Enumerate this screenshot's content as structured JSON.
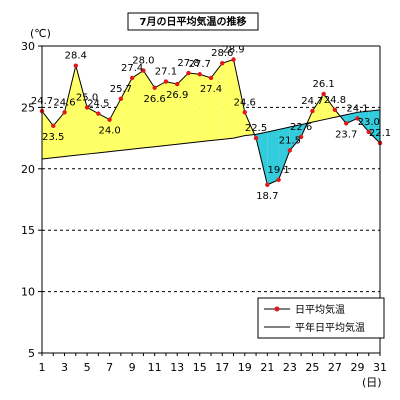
{
  "chart_data": {
    "type": "line",
    "title": "7月の日平均気温の推移",
    "y_unit": "(℃)",
    "x_unit": "(日)",
    "ylim": [
      5,
      30
    ],
    "y_ticks": [
      "5",
      "10",
      "15",
      "20",
      "25",
      "30"
    ],
    "y_tick_values": [
      5,
      10,
      15,
      20,
      25,
      30
    ],
    "dashed_grid_values": [
      10,
      15,
      20,
      25
    ],
    "x_ticks": [
      "1",
      "3",
      "5",
      "7",
      "9",
      "11",
      "13",
      "15",
      "17",
      "19",
      "21",
      "23",
      "25",
      "27",
      "29",
      "31"
    ],
    "x": [
      1,
      2,
      3,
      4,
      5,
      6,
      7,
      8,
      9,
      10,
      11,
      12,
      13,
      14,
      15,
      16,
      17,
      18,
      19,
      20,
      21,
      22,
      23,
      24,
      25,
      26,
      27,
      28,
      29,
      30,
      31
    ],
    "series": [
      {
        "name": "日平均気温",
        "color": "#e01818",
        "values": [
          24.7,
          23.5,
          24.6,
          28.4,
          25.0,
          24.5,
          24.0,
          25.7,
          27.4,
          28.0,
          26.6,
          27.1,
          26.9,
          27.8,
          27.7,
          27.4,
          28.6,
          28.9,
          24.6,
          22.5,
          18.7,
          19.1,
          21.5,
          22.6,
          24.7,
          26.1,
          24.8,
          23.7,
          24.1,
          23.0,
          22.1
        ],
        "labels": [
          "24.7",
          "23.5",
          "24.6",
          "28.4",
          "25.0",
          "24.5",
          "24.0",
          "25.7",
          "27.4",
          "28.0",
          "26.6",
          "27.1",
          "26.9",
          "27.8",
          "27.7",
          "27.4",
          "28.6",
          "28.9",
          "24.6",
          "22.5",
          "18.7",
          "19.1",
          "21.5",
          "22.6",
          "24.7",
          "26.1",
          "24.8",
          "23.7",
          "24.1",
          "23.0",
          "22.1"
        ]
      },
      {
        "name": "平年日平均気温",
        "color": "#000000",
        "values": [
          20.8,
          20.9,
          21.0,
          21.1,
          21.2,
          21.3,
          21.4,
          21.5,
          21.6,
          21.7,
          21.8,
          21.9,
          22.0,
          22.1,
          22.2,
          22.3,
          22.4,
          22.5,
          22.7,
          22.8,
          23.0,
          23.2,
          23.4,
          23.6,
          23.8,
          24.0,
          24.2,
          24.4,
          24.6,
          24.7,
          24.8
        ]
      }
    ],
    "fill_above_color": "#ffff66",
    "fill_below_color": "#33ccdd",
    "legend": [
      "日平均気温",
      "平年日平均気温"
    ],
    "legend_position": "bottom-right",
    "grid": "horizontal dashed"
  }
}
